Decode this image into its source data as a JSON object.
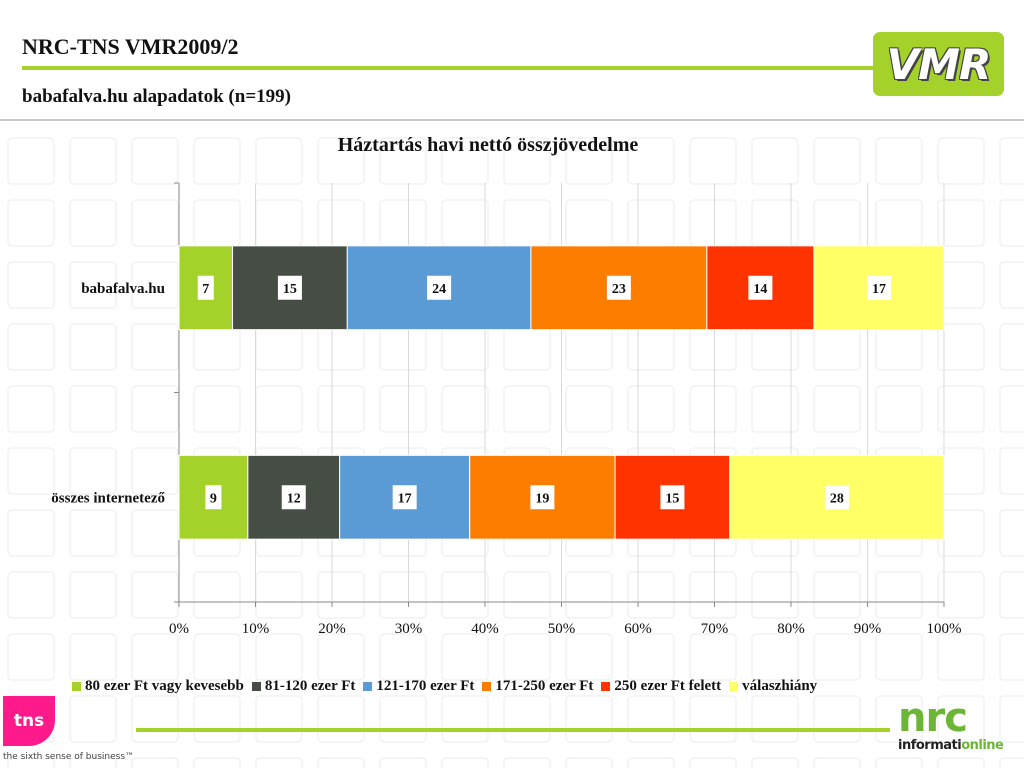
{
  "header": {
    "title": "NRC-TNS VMR2009/2",
    "subtitle": "babafalva.hu alapadatok (n=199)"
  },
  "logos": {
    "vmr": "VMR",
    "tns": "tns",
    "tns_tagline": "the sixth sense of business™",
    "nrc": "nrc",
    "nrc_sub_a": "informati",
    "nrc_sub_b": "online"
  },
  "colors": {
    "accent_green": "#a5d22a",
    "tns_pink": "#ff1a8c",
    "nrc_green": "#6cb536"
  },
  "chart_data": {
    "type": "bar",
    "orientation": "horizontal",
    "stacked": "percent",
    "title": "Háztartás havi nettó összjövedelme",
    "categories": [
      "babafalva.hu",
      "összes internetező"
    ],
    "series": [
      {
        "name": "80 ezer Ft vagy kevesebb",
        "color": "#a5d22a",
        "values": [
          7,
          9
        ]
      },
      {
        "name": "81-120 ezer Ft",
        "color": "#454d45",
        "values": [
          15,
          12
        ]
      },
      {
        "name": "121-170 ezer Ft",
        "color": "#5b9bd5",
        "values": [
          24,
          17
        ]
      },
      {
        "name": "171-250 ezer Ft",
        "color": "#fd7d00",
        "values": [
          23,
          19
        ]
      },
      {
        "name": "250 ezer Ft felett",
        "color": "#ff3300",
        "values": [
          14,
          15
        ]
      },
      {
        "name": "válaszhiány",
        "color": "#ffff66",
        "values": [
          17,
          28
        ]
      }
    ],
    "xticks": [
      "0%",
      "10%",
      "20%",
      "30%",
      "40%",
      "50%",
      "60%",
      "70%",
      "80%",
      "90%",
      "100%"
    ],
    "xlim": [
      0,
      100
    ],
    "grid": true,
    "legend_position": "bottom"
  }
}
